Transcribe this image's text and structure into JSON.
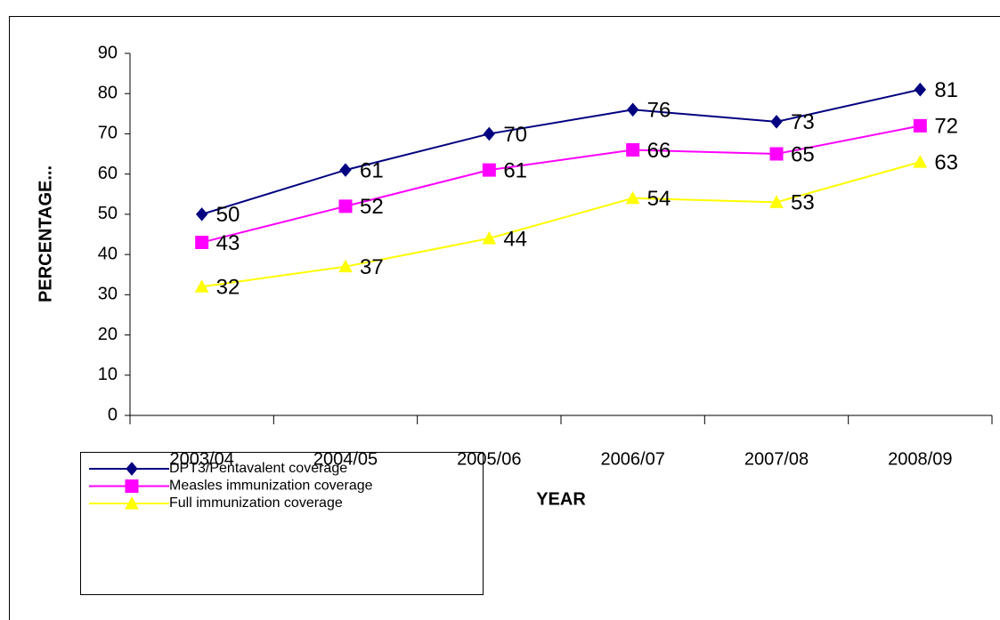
{
  "chart_data": {
    "type": "line",
    "categories": [
      "2003/04",
      "2004/05",
      "2005/06",
      "2006/07",
      "2007/08",
      "2008/09"
    ],
    "series": [
      {
        "name": "DPT3/Pentavalent coverage",
        "color": "#000080",
        "marker": "diamond",
        "values": [
          50,
          61,
          70,
          76,
          73,
          81
        ]
      },
      {
        "name": "Measles immunization coverage",
        "color": "#ff00ff",
        "marker": "square",
        "values": [
          43,
          52,
          61,
          66,
          65,
          72
        ]
      },
      {
        "name": "Full immunization coverage",
        "color": "#ffff00",
        "marker": "triangle",
        "values": [
          32,
          37,
          44,
          54,
          53,
          63
        ]
      }
    ],
    "xlabel": "YEAR",
    "ylabel": "PERCENTAGE...",
    "ylim": [
      0,
      90
    ],
    "yticks": [
      0,
      10,
      20,
      30,
      40,
      50,
      60,
      70,
      80,
      90
    ],
    "grid": false,
    "legend": "bottom-left"
  }
}
